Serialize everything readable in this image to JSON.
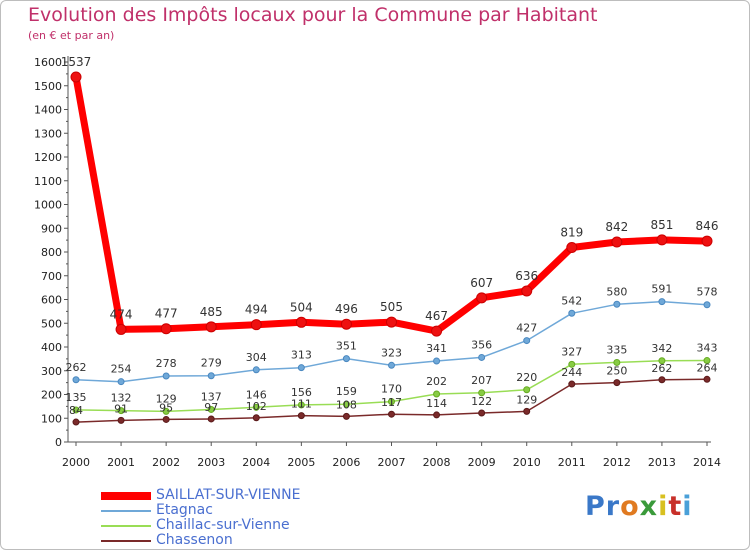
{
  "chart_data": {
    "type": "line",
    "title": "Evolution des Impôts locaux pour la Commune par Habitant",
    "subtitle": "(en € et par an)",
    "xlabel": "",
    "ylabel": "",
    "x": [
      "2000",
      "2001",
      "2002",
      "2003",
      "2004",
      "2005",
      "2006",
      "2007",
      "2008",
      "2009",
      "2010",
      "2011",
      "2012",
      "2013",
      "2014"
    ],
    "yticks": [
      0,
      100,
      200,
      300,
      400,
      500,
      600,
      700,
      800,
      900,
      1000,
      1100,
      1200,
      1300,
      1400,
      1500,
      1600
    ],
    "ylim": [
      0,
      1600
    ],
    "grid": "none",
    "legend_position": "bottom-left",
    "series": [
      {
        "name": "SAILLAT-SUR-VIENNE",
        "color": "#ff0000",
        "values": [
          1537,
          474,
          477,
          485,
          494,
          504,
          496,
          505,
          467,
          607,
          636,
          819,
          842,
          851,
          846
        ]
      },
      {
        "name": "Etagnac",
        "color": "#6fa8d8",
        "values": [
          262,
          254,
          278,
          279,
          304,
          313,
          351,
          323,
          341,
          356,
          427,
          542,
          580,
          591,
          578
        ]
      },
      {
        "name": "Chaillac-sur-Vienne",
        "color": "#99dd55",
        "values": [
          135,
          132,
          129,
          137,
          146,
          156,
          159,
          170,
          202,
          207,
          220,
          327,
          335,
          342,
          343
        ]
      },
      {
        "name": "Chassenon",
        "color": "#7a2a2a",
        "values": [
          84,
          91,
          95,
          97,
          102,
          111,
          108,
          117,
          114,
          122,
          129,
          244,
          250,
          262,
          264
        ]
      }
    ]
  },
  "logo": {
    "p1": "Pr",
    "p2": "o",
    "p3": "x",
    "p4": "i",
    "p5": "t",
    "p6": "i"
  }
}
